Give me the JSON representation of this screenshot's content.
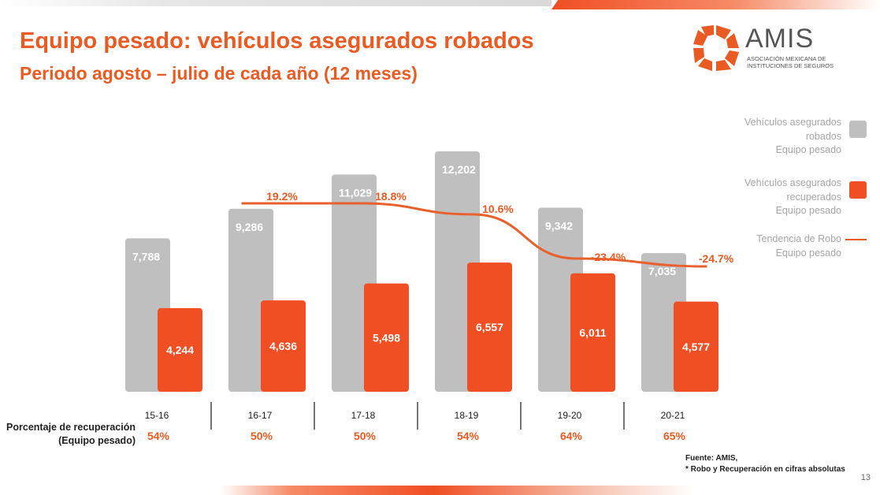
{
  "title": "Equipo pesado: vehículos asegurados robados",
  "subtitle": "Periodo agosto – julio de cada año (12 meses)",
  "logo": {
    "name": "AMIS",
    "tagline_line1": "Asociación Mexicana de",
    "tagline_line2": "Instituciones de Seguros"
  },
  "colors": {
    "accent": "#EA5B23",
    "gray": "#BFBFBF",
    "trend": "#E8602C"
  },
  "chart_data": {
    "type": "bar",
    "categories": [
      "15-16",
      "16-17",
      "17-18",
      "18-19",
      "19-20",
      "20-21"
    ],
    "series": [
      {
        "name": "Vehículos asegurados robados Equipo pesado",
        "values": [
          7788,
          9286,
          11029,
          12202,
          9342,
          7035
        ]
      },
      {
        "name": "Vehículos asegurados recuperados Equipo pesado",
        "values": [
          4244,
          4636,
          5498,
          6557,
          6011,
          4577
        ]
      }
    ],
    "value_labels_robados": [
      "7,788",
      "9,286",
      "11,029",
      "12,202",
      "9,342",
      "7,035"
    ],
    "value_labels_recuperados": [
      "4,244",
      "4,636",
      "5,498",
      "6,557",
      "6,011",
      "4,577"
    ],
    "trend": {
      "name": "Tendencia de Robo Equipo pesado",
      "labels": [
        "19.2%",
        "18.8%",
        "10.6%",
        "-23.4%",
        "-24.7%"
      ]
    },
    "recovery_percentages": [
      "54%",
      "50%",
      "50%",
      "54%",
      "64%",
      "65%"
    ],
    "legend": {
      "placement": "right",
      "robados": [
        "Vehículos asegurados",
        "robados",
        "Equipo pesado"
      ],
      "recuperados": [
        "Vehículos asegurados",
        "recuperados",
        "Equipo pesado"
      ],
      "tendencia": [
        "Tendencia de Robo",
        "Equipo pesado"
      ]
    }
  },
  "recovery_label": {
    "line1": "Porcentaje de recuperación",
    "line2": "(Equipo pesado)"
  },
  "source": {
    "line1": "Fuente:  AMIS,",
    "line2": "* Robo y Recuperación en cifras absolutas"
  },
  "page_number": "13"
}
